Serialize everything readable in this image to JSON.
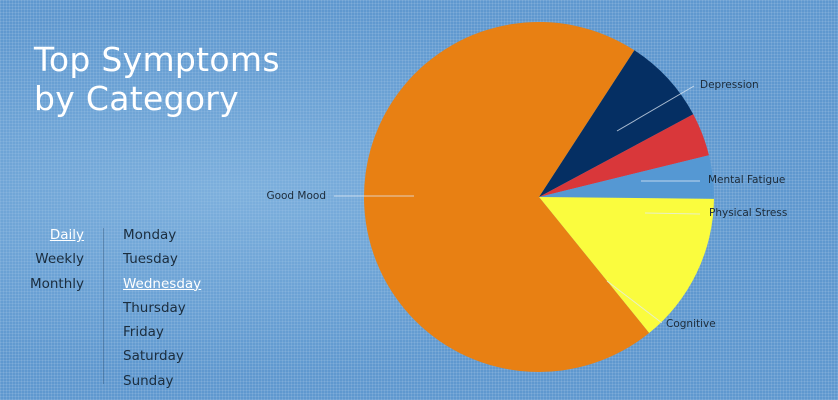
{
  "chart_data": {
    "type": "pie",
    "title": "Top Symptoms by Category",
    "title_lines": [
      "Top Symptoms",
      "by Category"
    ],
    "slices": [
      {
        "label": "Depression",
        "value": 8,
        "color": "#052f63"
      },
      {
        "label": "Mental Fatigue",
        "value": 4,
        "color": "#d9373a"
      },
      {
        "label": "Physical Stress",
        "value": 4,
        "color": "#5598d3"
      },
      {
        "label": "Cognitive",
        "value": 14,
        "color": "#fafc3e"
      },
      {
        "label": "Good Mood",
        "value": 70,
        "color": "#e88013"
      }
    ],
    "start_angle_deg": -57,
    "legend": "none"
  },
  "filters": {
    "periods": [
      {
        "label": "Daily",
        "active": true
      },
      {
        "label": "Weekly",
        "active": false
      },
      {
        "label": "Monthly",
        "active": false
      }
    ],
    "days": [
      {
        "label": "Monday",
        "active": false
      },
      {
        "label": "Tuesday",
        "active": false
      },
      {
        "label": "Wednesday",
        "active": true
      },
      {
        "label": "Thursday",
        "active": false
      },
      {
        "label": "Friday",
        "active": false
      },
      {
        "label": "Saturday",
        "active": false
      },
      {
        "label": "Sunday",
        "active": false
      }
    ]
  }
}
